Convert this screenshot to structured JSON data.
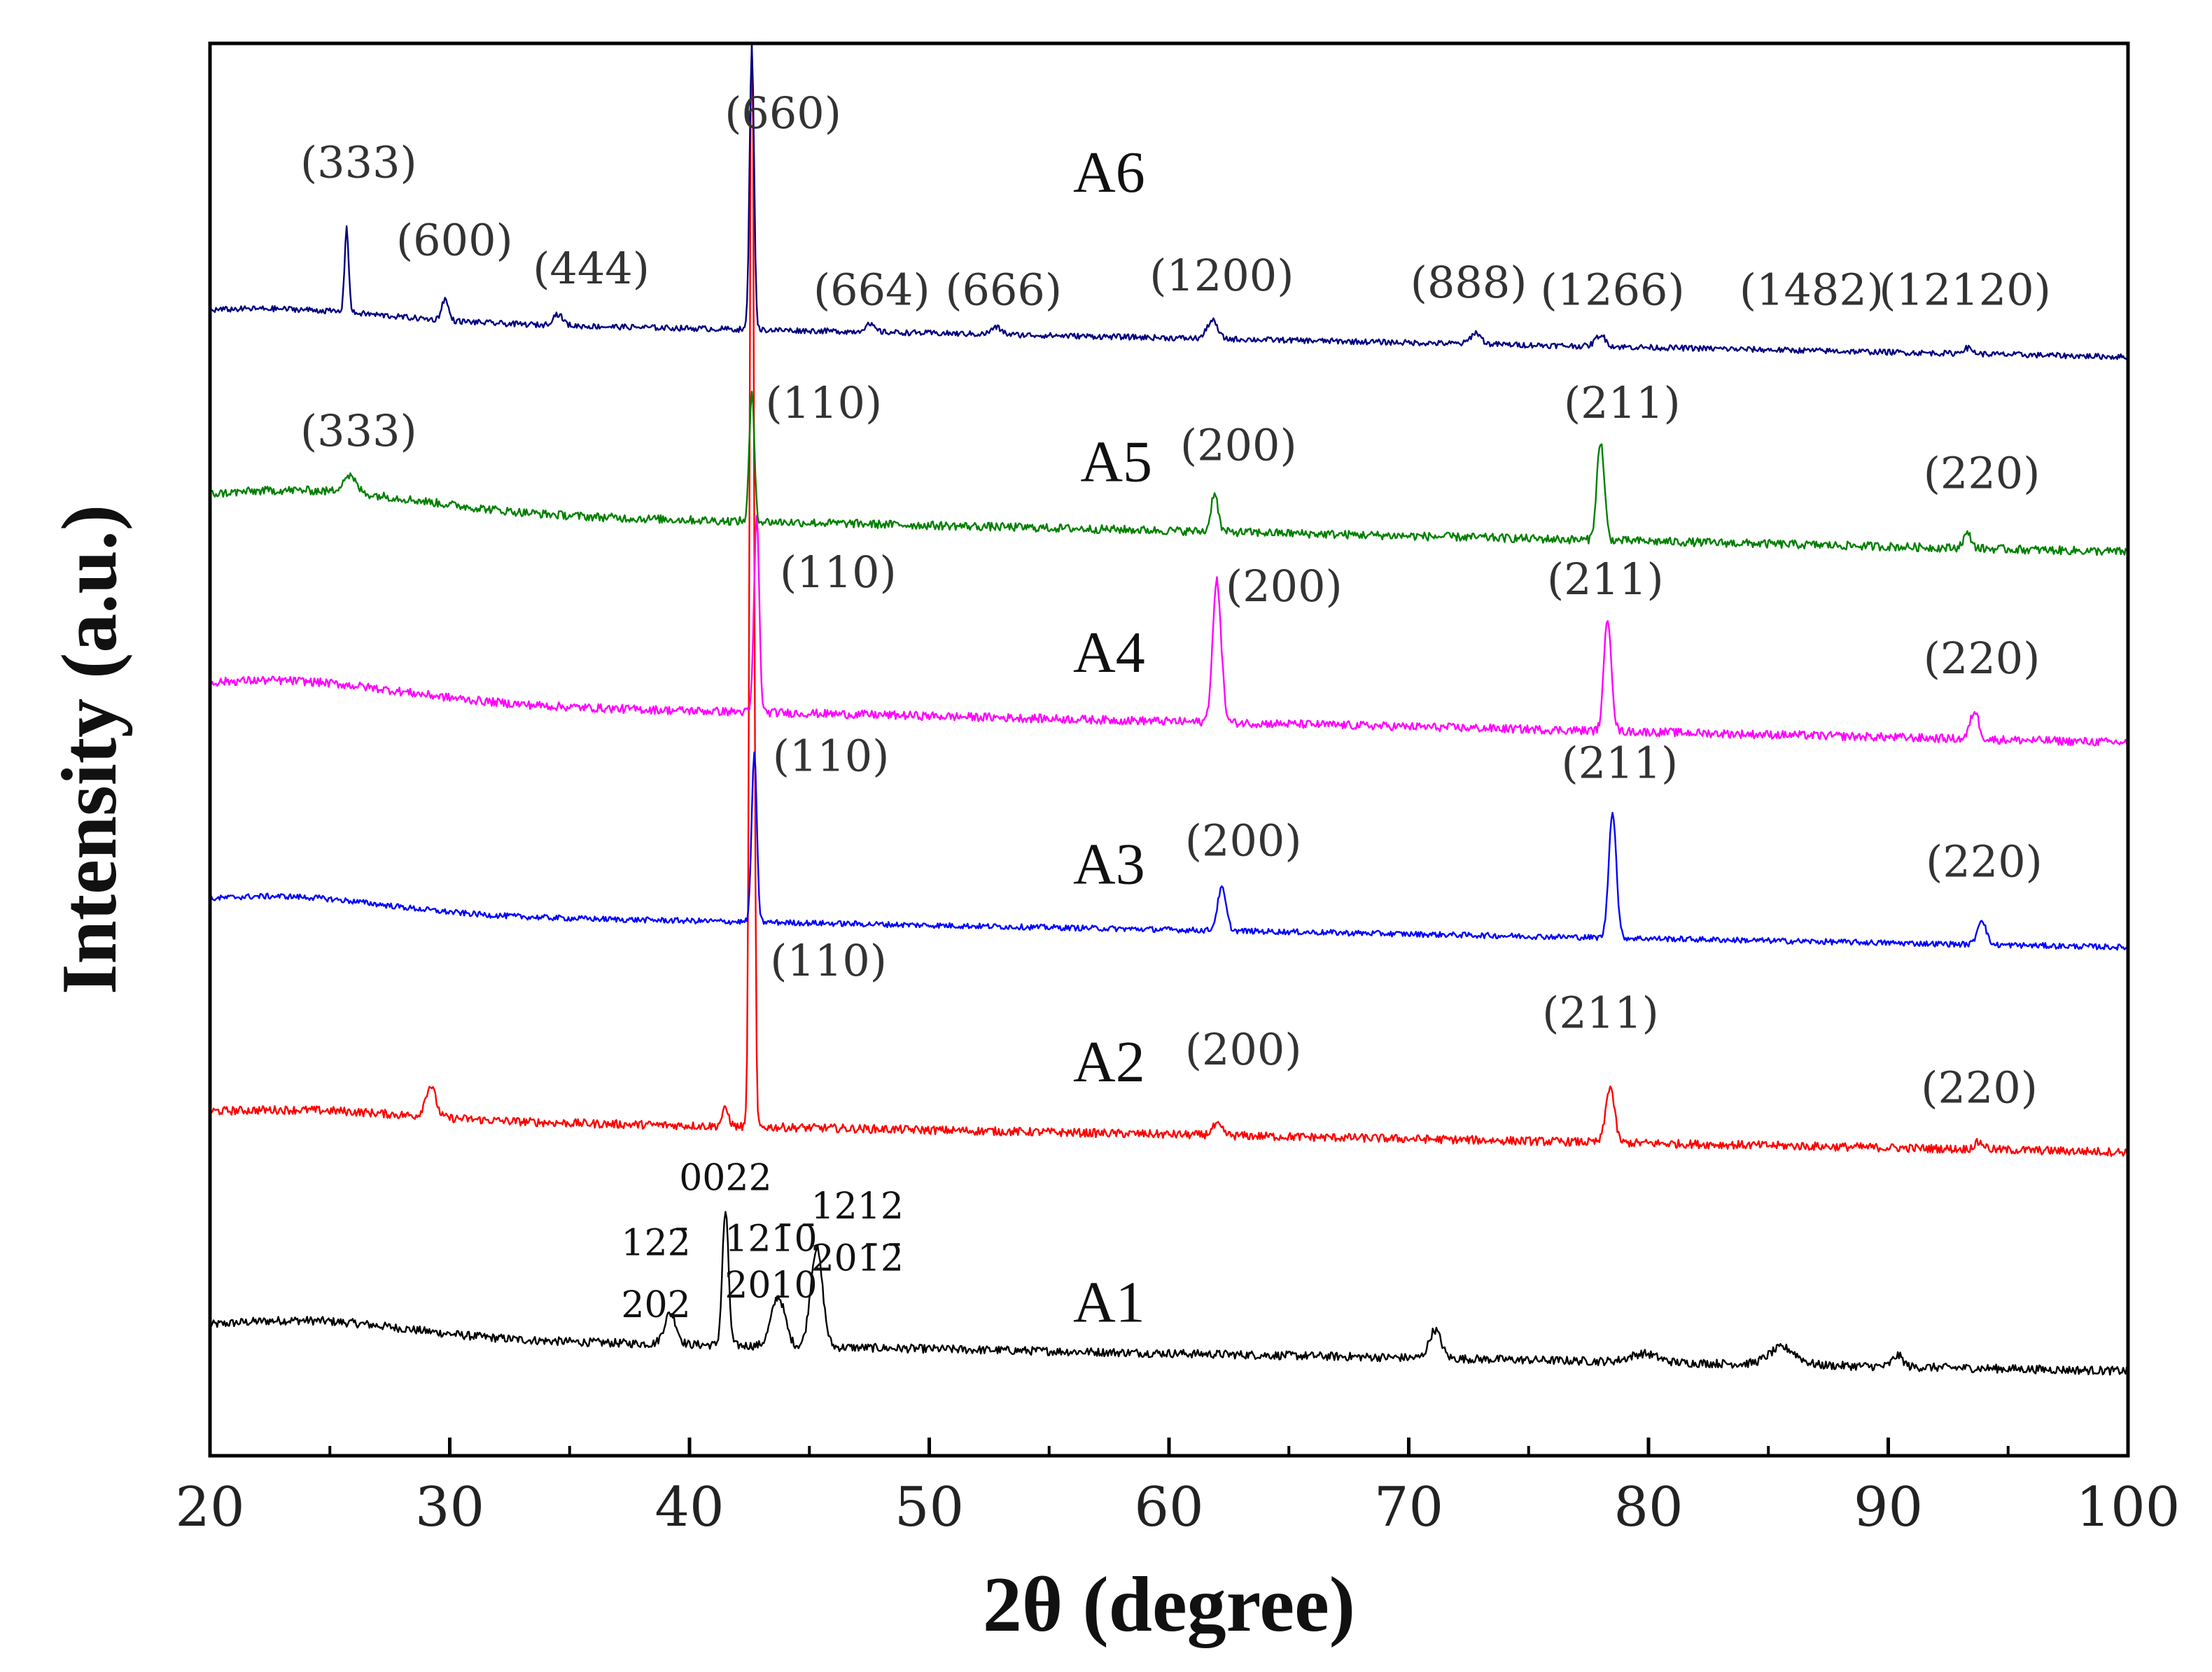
{
  "chart_data": {
    "type": "line",
    "title": "",
    "xlabel": "2θ (degree)",
    "ylabel": "Intensity (a.u.)",
    "xlim": [
      20,
      100
    ],
    "x_ticks": [
      20,
      30,
      40,
      50,
      60,
      70,
      80,
      90,
      100
    ],
    "grid": false,
    "legend": "none",
    "series": [
      {
        "name": "A1",
        "color": "#000000",
        "baseline": 0.06,
        "start": 0.085,
        "end": 0.06,
        "hump_center": 24,
        "hump_width": 6,
        "hump_height": 0.012,
        "noise": 0.006,
        "peaks": [
          {
            "x": 39.2,
            "h": 0.022,
            "w": 0.35
          },
          {
            "x": 41.5,
            "h": 0.095,
            "w": 0.18
          },
          {
            "x": 43.7,
            "h": 0.035,
            "w": 0.4
          },
          {
            "x": 45.3,
            "h": 0.07,
            "w": 0.35
          },
          {
            "x": 71.1,
            "h": 0.02,
            "w": 0.35
          },
          {
            "x": 79.8,
            "h": 0.006,
            "w": 0.8
          },
          {
            "x": 85.6,
            "h": 0.012,
            "w": 0.8
          },
          {
            "x": 90.4,
            "h": 0.008,
            "w": 0.3
          }
        ],
        "annotations": [
          {
            "text": "0022",
            "x": 41.5,
            "h": 0.128
          },
          {
            "text": "122̄",
            "x": 38.6,
            "h": 0.082
          },
          {
            "text": "202",
            "x": 38.6,
            "h": 0.038
          },
          {
            "text": "121̄0̄",
            "x": 43.4,
            "h": 0.085
          },
          {
            "text": "2010",
            "x": 43.4,
            "h": 0.052
          },
          {
            "text": "1212",
            "x": 47.0,
            "h": 0.108
          },
          {
            "text": "201̄2̄",
            "x": 47.0,
            "h": 0.071
          }
        ],
        "label_pos": {
          "x": 57.5,
          "h": 0.035
        }
      },
      {
        "name": "A2",
        "color": "#ff0000",
        "baseline": 0.225,
        "start": 0.24,
        "end": 0.215,
        "hump_center": 24,
        "hump_width": 6,
        "hump_height": 0.006,
        "noise": 0.006,
        "peaks": [
          {
            "x": 29.2,
            "h": 0.022,
            "w": 0.3
          },
          {
            "x": 41.5,
            "h": 0.012,
            "w": 0.2
          },
          {
            "x": 42.6,
            "h": 0.85,
            "w": 0.12
          },
          {
            "x": 62.0,
            "h": 0.007,
            "w": 0.3
          },
          {
            "x": 78.4,
            "h": 0.04,
            "w": 0.25
          },
          {
            "x": 93.8,
            "h": 0.005,
            "w": 0.3
          }
        ],
        "annotations": [
          {
            "text": "(110)",
            "x": 45.8,
            "h": 0.115
          },
          {
            "text": "(200)",
            "x": 63.1,
            "h": 0.052
          },
          {
            "text": "(211)",
            "x": 78.0,
            "h": 0.078
          },
          {
            "text": "(220)",
            "x": 93.8,
            "h": 0.025
          }
        ],
        "label_pos": {
          "x": 57.5,
          "h": 0.04
        }
      },
      {
        "name": "A3",
        "color": "#0000ff",
        "baseline": 0.37,
        "start": 0.385,
        "end": 0.36,
        "hump_center": 23,
        "hump_width": 6,
        "hump_height": 0.012,
        "noise": 0.004,
        "peaks": [
          {
            "x": 42.7,
            "h": 0.12,
            "w": 0.15
          },
          {
            "x": 62.2,
            "h": 0.03,
            "w": 0.25
          },
          {
            "x": 78.5,
            "h": 0.09,
            "w": 0.22
          },
          {
            "x": 93.9,
            "h": 0.018,
            "w": 0.25
          }
        ],
        "annotations": [
          {
            "text": "(110)",
            "x": 45.9,
            "h": 0.115
          },
          {
            "text": "(200)",
            "x": 63.1,
            "h": 0.055
          },
          {
            "text": "(211)",
            "x": 78.8,
            "h": 0.11
          },
          {
            "text": "(220)",
            "x": 94.0,
            "h": 0.04
          }
        ],
        "label_pos": {
          "x": 57.5,
          "h": 0.035
        }
      },
      {
        "name": "A4",
        "color": "#ff00ff",
        "baseline": 0.51,
        "start": 0.535,
        "end": 0.505,
        "hump_center": 23,
        "hump_width": 7,
        "hump_height": 0.015,
        "noise": 0.006,
        "peaks": [
          {
            "x": 42.8,
            "h": 0.14,
            "w": 0.15
          },
          {
            "x": 62.0,
            "h": 0.1,
            "w": 0.25
          },
          {
            "x": 78.3,
            "h": 0.08,
            "w": 0.22
          },
          {
            "x": 93.6,
            "h": 0.02,
            "w": 0.25
          }
        ],
        "annotations": [
          {
            "text": "(110)",
            "x": 46.2,
            "h": 0.105
          },
          {
            "text": "(200)",
            "x": 64.8,
            "h": 0.095
          },
          {
            "text": "(211)",
            "x": 78.2,
            "h": 0.1
          },
          {
            "text": "(220)",
            "x": 93.9,
            "h": 0.044
          }
        ],
        "label_pos": {
          "x": 57.5,
          "h": 0.045
        }
      },
      {
        "name": "A5",
        "color": "#008000",
        "baseline": 0.645,
        "start": 0.67,
        "end": 0.64,
        "hump_center": 24,
        "hump_width": 7,
        "hump_height": 0.015,
        "noise": 0.006,
        "peaks": [
          {
            "x": 25.8,
            "h": 0.012,
            "w": 0.4
          },
          {
            "x": 42.6,
            "h": 0.09,
            "w": 0.15
          },
          {
            "x": 61.9,
            "h": 0.028,
            "w": 0.2
          },
          {
            "x": 78.0,
            "h": 0.07,
            "w": 0.22
          },
          {
            "x": 93.3,
            "h": 0.01,
            "w": 0.25
          }
        ],
        "annotations": [
          {
            "text": "(333)",
            "x": 26.2,
            "h": 0.07
          },
          {
            "text": "(110)",
            "x": 45.6,
            "h": 0.09
          },
          {
            "text": "(200)",
            "x": 62.9,
            "h": 0.06
          },
          {
            "text": "(211)",
            "x": 78.9,
            "h": 0.09
          },
          {
            "text": "(220)",
            "x": 93.9,
            "h": 0.04
          }
        ],
        "label_pos": {
          "x": 57.8,
          "h": 0.045
        }
      },
      {
        "name": "A6",
        "color": "#000080",
        "baseline": 0.785,
        "start": 0.805,
        "end": 0.778,
        "hump_center": 23,
        "hump_width": 6,
        "hump_height": 0.008,
        "noise": 0.004,
        "peaks": [
          {
            "x": 25.7,
            "h": 0.06,
            "w": 0.12
          },
          {
            "x": 29.8,
            "h": 0.015,
            "w": 0.2
          },
          {
            "x": 34.5,
            "h": 0.008,
            "w": 0.3
          },
          {
            "x": 42.6,
            "h": 0.2,
            "w": 0.13
          },
          {
            "x": 47.5,
            "h": 0.005,
            "w": 0.3
          },
          {
            "x": 52.8,
            "h": 0.005,
            "w": 0.3
          },
          {
            "x": 61.8,
            "h": 0.013,
            "w": 0.3
          },
          {
            "x": 72.8,
            "h": 0.008,
            "w": 0.3
          },
          {
            "x": 78.0,
            "h": 0.008,
            "w": 0.3
          },
          {
            "x": 93.3,
            "h": 0.004,
            "w": 0.3
          }
        ],
        "annotations": [
          {
            "text": "(333)",
            "x": 26.2,
            "h": 0.12
          },
          {
            "text": "(600)",
            "x": 30.2,
            "h": 0.065
          },
          {
            "text": "(444)",
            "x": 35.9,
            "h": 0.045
          },
          {
            "text": "(660)",
            "x": 43.9,
            "h": 0.155
          },
          {
            "text": "(664)",
            "x": 47.6,
            "h": 0.03
          },
          {
            "text": "(666)",
            "x": 53.1,
            "h": 0.03
          },
          {
            "text": "(1200)",
            "x": 62.2,
            "h": 0.04
          },
          {
            "text": "(888)",
            "x": 72.5,
            "h": 0.035
          },
          {
            "text": "(1266)",
            "x": 78.5,
            "h": 0.03
          },
          {
            "text": "(1482)",
            "x": 86.8,
            "h": 0.03
          },
          {
            "text": "(12120)",
            "x": 93.2,
            "h": 0.03
          }
        ],
        "label_pos": {
          "x": 57.5,
          "h": 0.11
        }
      }
    ]
  }
}
